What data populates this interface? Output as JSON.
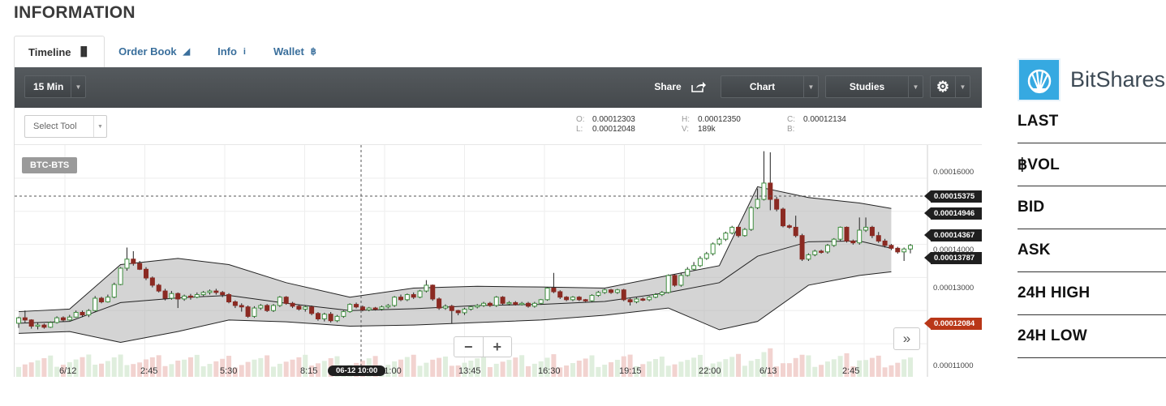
{
  "page": {
    "title": "INFORMATION"
  },
  "tabs": [
    {
      "label": "Timeline",
      "icon": "bar-chart-icon",
      "glyph": "▐▌"
    },
    {
      "label": "Order Book",
      "icon": "area-chart-icon",
      "glyph": "◢"
    },
    {
      "label": "Info",
      "icon": "info-icon",
      "glyph": "i"
    },
    {
      "label": "Wallet",
      "icon": "bitcoin-icon",
      "glyph": "฿"
    }
  ],
  "toolbar": {
    "interval": "15 Min",
    "share": "Share",
    "chart": "Chart",
    "studies": "Studies"
  },
  "select_tool": "Select Tool",
  "ohlc": {
    "O": "0.00012303",
    "H": "0.00012350",
    "C": "0.00012134",
    "L": "0.00012048",
    "V": "189k",
    "B": ""
  },
  "symbol": "BTC-BTS",
  "crosshair_time": "06-12 10:00",
  "price_tags": {
    "cross": "0.00015375",
    "upper": "0.00014946",
    "mid": "0.00014367",
    "lower": "0.00013787",
    "last": "0.00012084"
  },
  "colors": {
    "up": "#3f8f3f",
    "down": "#8b2a22",
    "band": "#cccccc",
    "toolbar": "#4a4e51",
    "last_tag": "#b93718"
  },
  "chart_data": {
    "type": "candlestick",
    "symbol": "BTC-BTS",
    "y_ticks": [
      {
        "label": "0.00016000",
        "value": 0.00016
      },
      {
        "label": "0.00014000",
        "value": 0.00014
      },
      {
        "label": "0.00013000",
        "value": 0.00013
      },
      {
        "label": "0.00011000",
        "value": 0.00011
      }
    ],
    "x_ticks": [
      "6/12",
      "2:45",
      "5:30",
      "8:15",
      "11:00",
      "13:45",
      "16:30",
      "19:15",
      "22:00",
      "6/13",
      "2:45"
    ],
    "ylim": [
      0.0001065,
      0.0001705
    ],
    "bollinger_points": [
      [
        0,
        0.0001245,
        0.0001213,
        0.0001185
      ],
      [
        8,
        0.0001252,
        0.0001218,
        0.000119
      ],
      [
        16,
        0.0001375,
        0.000127,
        0.000116
      ],
      [
        25,
        0.0001392,
        0.0001283,
        0.000119
      ],
      [
        33,
        0.0001375,
        0.000129,
        0.0001222
      ],
      [
        42,
        0.0001325,
        0.0001268,
        0.0001217
      ],
      [
        52,
        0.0001285,
        0.0001248,
        0.0001205
      ],
      [
        62,
        0.000131,
        0.0001253,
        0.0001208
      ],
      [
        72,
        0.0001315,
        0.0001262,
        0.0001215
      ],
      [
        82,
        0.0001313,
        0.0001265,
        0.0001222
      ],
      [
        92,
        0.000131,
        0.0001273,
        0.0001235
      ],
      [
        102,
        0.0001345,
        0.0001298,
        0.0001255
      ],
      [
        110,
        0.0001372,
        0.0001325,
        0.0001195
      ],
      [
        116,
        0.000159,
        0.0001398,
        0.0001218
      ],
      [
        124,
        0.000156,
        0.0001438,
        0.0001318
      ],
      [
        132,
        0.0001545,
        0.000144,
        0.0001345
      ],
      [
        137,
        0.000153,
        0.000142,
        0.0001355
      ]
    ],
    "candles": [
      [
        0,
        0.0001213,
        0.0001228,
        0.0001231,
        0.00012
      ],
      [
        1,
        0.0001228,
        0.0001222,
        0.0001248,
        0.0001215
      ],
      [
        2,
        0.0001222,
        0.0001205,
        0.0001224,
        0.0001198
      ],
      [
        3,
        0.0001205,
        0.0001208,
        0.0001215,
        0.0001196
      ],
      [
        4,
        0.0001208,
        0.0001202,
        0.0001212,
        0.0001198
      ],
      [
        5,
        0.0001202,
        0.0001215,
        0.0001218,
        0.00012
      ],
      [
        6,
        0.0001215,
        0.0001228,
        0.0001232,
        0.0001212
      ],
      [
        7,
        0.0001228,
        0.0001222,
        0.0001232,
        0.0001218
      ],
      [
        8,
        0.0001222,
        0.000123,
        0.0001236,
        0.000122
      ],
      [
        9,
        0.000123,
        0.0001243,
        0.0001248,
        0.0001228
      ],
      [
        10,
        0.0001243,
        0.0001236,
        0.0001248,
        0.000123
      ],
      [
        11,
        0.0001236,
        0.0001248,
        0.0001252,
        0.000123
      ],
      [
        12,
        0.0001248,
        0.0001282,
        0.0001288,
        0.0001245
      ],
      [
        13,
        0.0001282,
        0.0001272,
        0.0001286,
        0.0001268
      ],
      [
        14,
        0.0001272,
        0.0001285,
        0.0001292,
        0.000127
      ],
      [
        15,
        0.0001285,
        0.000132,
        0.0001325,
        0.0001282
      ],
      [
        16,
        0.000132,
        0.0001365,
        0.0001368,
        0.0001318
      ],
      [
        17,
        0.0001365,
        0.000139,
        0.0001422,
        0.0001358
      ],
      [
        18,
        0.000139,
        0.0001378,
        0.0001412,
        0.0001372
      ],
      [
        19,
        0.0001378,
        0.0001362,
        0.0001385,
        0.000136
      ],
      [
        20,
        0.0001362,
        0.0001338,
        0.0001368,
        0.0001332
      ],
      [
        21,
        0.0001338,
        0.0001318,
        0.0001342,
        0.0001312
      ],
      [
        22,
        0.0001318,
        0.0001302,
        0.0001322,
        0.0001298
      ],
      [
        23,
        0.0001302,
        0.0001282,
        0.0001308,
        0.0001276
      ],
      [
        24,
        0.0001282,
        0.0001295,
        0.0001302,
        0.0001278
      ],
      [
        25,
        0.0001295,
        0.000128,
        0.0001298,
        0.0001255
      ],
      [
        26,
        0.000128,
        0.0001288,
        0.0001292,
        0.0001275
      ],
      [
        27,
        0.0001288,
        0.0001285,
        0.0001294,
        0.0001278
      ],
      [
        28,
        0.0001285,
        0.0001292,
        0.0001298,
        0.0001282
      ],
      [
        29,
        0.0001292,
        0.0001298,
        0.0001302,
        0.0001288
      ],
      [
        30,
        0.0001298,
        0.0001302,
        0.0001306,
        0.0001292
      ],
      [
        31,
        0.0001302,
        0.0001298,
        0.0001308,
        0.0001292
      ],
      [
        32,
        0.0001298,
        0.0001292,
        0.0001302,
        0.0001285
      ],
      [
        33,
        0.0001292,
        0.0001272,
        0.0001296,
        0.0001268
      ],
      [
        34,
        0.0001272,
        0.0001262,
        0.0001276,
        0.0001255
      ],
      [
        35,
        0.0001262,
        0.0001258,
        0.0001268,
        0.0001245
      ],
      [
        36,
        0.0001258,
        0.0001232,
        0.0001262,
        0.0001228
      ],
      [
        37,
        0.0001232,
        0.0001255,
        0.000126,
        0.0001228
      ],
      [
        38,
        0.0001255,
        0.0001262,
        0.0001266,
        0.000125
      ],
      [
        39,
        0.0001262,
        0.0001248,
        0.0001266,
        0.0001244
      ],
      [
        40,
        0.0001248,
        0.0001262,
        0.0001266,
        0.0001244
      ],
      [
        41,
        0.0001262,
        0.0001285,
        0.0001288,
        0.0001258
      ],
      [
        42,
        0.0001285,
        0.0001268,
        0.0001288,
        0.0001264
      ],
      [
        43,
        0.0001268,
        0.000126,
        0.0001272,
        0.0001255
      ],
      [
        44,
        0.000126,
        0.0001252,
        0.0001264,
        0.0001248
      ],
      [
        45,
        0.0001252,
        0.0001258,
        0.0001262,
        0.0001245
      ],
      [
        46,
        0.0001258,
        0.000124,
        0.0001262,
        0.0001235
      ],
      [
        47,
        0.000124,
        0.0001225,
        0.0001244,
        0.000122
      ],
      [
        48,
        0.0001225,
        0.0001238,
        0.0001242,
        0.0001218
      ],
      [
        49,
        0.0001238,
        0.000122,
        0.0001244,
        0.0001215
      ],
      [
        50,
        0.000122,
        0.0001232,
        0.0001236,
        0.0001216
      ],
      [
        51,
        0.0001232,
        0.0001245,
        0.0001248,
        0.0001228
      ],
      [
        52,
        0.0001245,
        0.0001265,
        0.0001268,
        0.0001242
      ],
      [
        53,
        0.0001265,
        0.0001258,
        0.000127,
        0.0001254
      ],
      [
        54,
        0.0001258,
        0.000125,
        0.0001262,
        0.0001246
      ],
      [
        55,
        0.000125,
        0.0001255,
        0.0001258,
        0.0001246
      ],
      [
        56,
        0.0001255,
        0.0001252,
        0.0001258,
        0.0001248
      ],
      [
        57,
        0.0001252,
        0.0001258,
        0.0001262,
        0.0001248
      ],
      [
        58,
        0.0001258,
        0.0001262,
        0.0001266,
        0.0001254
      ],
      [
        59,
        0.0001262,
        0.0001285,
        0.0001288,
        0.0001258
      ],
      [
        60,
        0.0001285,
        0.0001278,
        0.0001292,
        0.0001274
      ],
      [
        61,
        0.0001278,
        0.0001292,
        0.0001295,
        0.0001274
      ],
      [
        62,
        0.0001292,
        0.0001285,
        0.0001298,
        0.000128
      ],
      [
        63,
        0.0001285,
        0.0001302,
        0.0001305,
        0.0001282
      ],
      [
        64,
        0.0001302,
        0.0001318,
        0.0001332,
        0.0001298
      ],
      [
        65,
        0.0001318,
        0.000128,
        0.000132,
        0.0001275
      ],
      [
        66,
        0.000128,
        0.0001255,
        0.0001284,
        0.000125
      ],
      [
        67,
        0.0001255,
        0.000126,
        0.0001265,
        0.000125
      ],
      [
        68,
        0.000126,
        0.0001248,
        0.0001264,
        0.0001212
      ],
      [
        69,
        0.0001248,
        0.0001242,
        0.000125,
        0.0001235
      ],
      [
        70,
        0.0001242,
        0.0001252,
        0.0001256,
        0.0001236
      ],
      [
        71,
        0.0001252,
        0.0001258,
        0.0001262,
        0.0001248
      ],
      [
        72,
        0.0001258,
        0.0001262,
        0.0001266,
        0.0001254
      ],
      [
        73,
        0.0001262,
        0.0001268,
        0.0001272,
        0.0001258
      ],
      [
        74,
        0.0001268,
        0.0001262,
        0.0001272,
        0.0001258
      ],
      [
        75,
        0.0001262,
        0.0001285,
        0.0001288,
        0.0001258
      ],
      [
        76,
        0.0001285,
        0.0001268,
        0.0001288,
        0.0001264
      ],
      [
        77,
        0.0001268,
        0.000127,
        0.0001274,
        0.0001262
      ],
      [
        78,
        0.000127,
        0.0001265,
        0.0001274,
        0.0001262
      ],
      [
        79,
        0.0001265,
        0.0001268,
        0.0001272,
        0.0001262
      ],
      [
        80,
        0.0001268,
        0.000126,
        0.0001272,
        0.0001256
      ],
      [
        81,
        0.000126,
        0.0001268,
        0.0001272,
        0.0001256
      ],
      [
        82,
        0.0001268,
        0.0001278,
        0.000128,
        0.0001264
      ],
      [
        83,
        0.0001278,
        0.000131,
        0.0001312,
        0.0001275
      ],
      [
        84,
        0.000131,
        0.00013,
        0.0001352,
        0.0001296
      ],
      [
        85,
        0.00013,
        0.0001285,
        0.0001304,
        0.000128
      ],
      [
        86,
        0.0001285,
        0.0001278,
        0.0001288,
        0.0001274
      ],
      [
        87,
        0.0001278,
        0.0001285,
        0.0001288,
        0.0001274
      ],
      [
        88,
        0.0001285,
        0.0001278,
        0.0001288,
        0.0001274
      ],
      [
        89,
        0.0001278,
        0.0001275,
        0.000128,
        0.0001272
      ],
      [
        90,
        0.0001275,
        0.000129,
        0.0001293,
        0.0001272
      ],
      [
        91,
        0.000129,
        0.0001298,
        0.0001302,
        0.0001286
      ],
      [
        92,
        0.0001298,
        0.0001305,
        0.0001308,
        0.0001294
      ],
      [
        93,
        0.0001305,
        0.0001298,
        0.0001308,
        0.0001294
      ],
      [
        94,
        0.0001298,
        0.0001305,
        0.0001308,
        0.0001294
      ],
      [
        95,
        0.0001305,
        0.0001278,
        0.0001308,
        0.0001274
      ],
      [
        96,
        0.0001278,
        0.0001272,
        0.0001282,
        0.0001262
      ],
      [
        97,
        0.0001272,
        0.000128,
        0.0001284,
        0.0001268
      ],
      [
        98,
        0.000128,
        0.0001278,
        0.0001284,
        0.0001274
      ],
      [
        99,
        0.0001278,
        0.0001285,
        0.0001288,
        0.0001274
      ],
      [
        100,
        0.0001285,
        0.0001292,
        0.0001296,
        0.0001282
      ],
      [
        101,
        0.0001292,
        0.0001298,
        0.0001302,
        0.0001288
      ],
      [
        102,
        0.0001298,
        0.0001345,
        0.0001348,
        0.0001295
      ],
      [
        103,
        0.0001345,
        0.0001318,
        0.0001348,
        0.0001314
      ],
      [
        104,
        0.0001318,
        0.0001345,
        0.0001352,
        0.0001314
      ],
      [
        105,
        0.0001345,
        0.0001362,
        0.0001368,
        0.0001342
      ],
      [
        106,
        0.0001362,
        0.0001372,
        0.0001382,
        0.0001358
      ],
      [
        107,
        0.0001372,
        0.0001392,
        0.0001398,
        0.0001368
      ],
      [
        108,
        0.0001392,
        0.0001405,
        0.000141,
        0.0001388
      ],
      [
        109,
        0.0001405,
        0.0001432,
        0.0001436,
        0.00014
      ],
      [
        110,
        0.0001432,
        0.0001445,
        0.000145,
        0.0001428
      ],
      [
        111,
        0.0001445,
        0.0001462,
        0.0001466,
        0.000144
      ],
      [
        112,
        0.0001462,
        0.0001478,
        0.0001482,
        0.0001458
      ],
      [
        113,
        0.0001478,
        0.0001455,
        0.0001482,
        0.000145
      ],
      [
        114,
        0.0001455,
        0.0001472,
        0.0001476,
        0.0001452
      ],
      [
        115,
        0.0001472,
        0.0001532,
        0.0001536,
        0.0001468
      ],
      [
        116,
        0.0001532,
        0.0001555,
        0.0001585,
        0.0001528
      ],
      [
        117,
        0.0001555,
        0.00016,
        0.0001688,
        0.0001552
      ],
      [
        118,
        0.00016,
        0.0001555,
        0.0001685,
        0.0001525
      ],
      [
        119,
        0.0001555,
        0.0001528,
        0.0001562,
        0.0001522
      ],
      [
        120,
        0.0001528,
        0.0001482,
        0.0001532,
        0.0001478
      ],
      [
        121,
        0.0001482,
        0.0001478,
        0.0001486,
        0.0001474
      ],
      [
        122,
        0.0001478,
        0.0001455,
        0.000151,
        0.000145
      ],
      [
        123,
        0.0001455,
        0.000139,
        0.000146,
        0.0001385
      ],
      [
        124,
        0.000139,
        0.0001402,
        0.0001406,
        0.0001385
      ],
      [
        125,
        0.0001402,
        0.0001412,
        0.0001416,
        0.0001398
      ],
      [
        126,
        0.0001412,
        0.000141,
        0.0001416,
        0.0001405
      ],
      [
        127,
        0.000141,
        0.0001428,
        0.0001432,
        0.0001405
      ],
      [
        128,
        0.0001428,
        0.0001445,
        0.0001448,
        0.0001424
      ],
      [
        129,
        0.0001445,
        0.0001478,
        0.000148,
        0.000144
      ],
      [
        130,
        0.0001478,
        0.000144,
        0.000148,
        0.0001436
      ],
      [
        131,
        0.000144,
        0.0001435,
        0.0001444,
        0.000143
      ],
      [
        132,
        0.0001435,
        0.000147,
        0.0001505,
        0.000143
      ],
      [
        133,
        0.000147,
        0.0001478,
        0.0001505,
        0.0001465
      ],
      [
        134,
        0.0001478,
        0.0001455,
        0.0001482,
        0.0001448
      ],
      [
        135,
        0.0001455,
        0.000144,
        0.0001465,
        0.0001435
      ],
      [
        136,
        0.000144,
        0.0001428,
        0.0001446,
        0.0001422
      ],
      [
        137,
        0.0001428,
        0.000142,
        0.0001432,
        0.0001415
      ],
      [
        138,
        0.000142,
        0.000141,
        0.0001424,
        0.0001405
      ],
      [
        139,
        0.000141,
        0.0001418,
        0.0001422,
        0.0001385
      ],
      [
        140,
        0.0001418,
        0.0001428,
        0.0001432,
        0.0001406
      ]
    ]
  },
  "side": {
    "brand": "BitShares",
    "rows": [
      "LAST",
      "฿VOL",
      "BID",
      "ASK",
      "24H HIGH",
      "24H LOW"
    ]
  }
}
